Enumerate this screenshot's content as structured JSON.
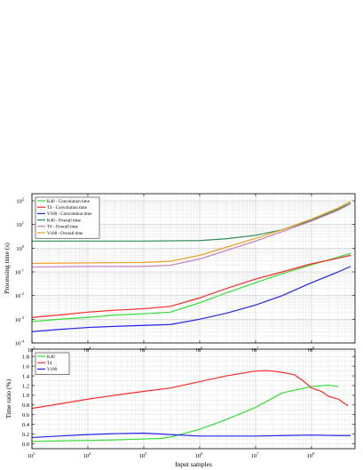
{
  "chart_data": [
    {
      "type": "line",
      "xlabel": "",
      "ylabel": "Processing time (s)",
      "xscale": "log",
      "yscale": "log",
      "xlim": [
        1000,
        600000000
      ],
      "ylim": [
        0.0001,
        200
      ],
      "x_tick_labels": [
        "10",
        "10",
        "10",
        "10",
        "10",
        "10"
      ],
      "x_tick_exponents": [
        "3",
        "4",
        "5",
        "6",
        "7",
        "8"
      ],
      "y_tick_labels": [
        "10",
        "10",
        "10",
        "10",
        "10",
        "10",
        "10"
      ],
      "y_tick_exponents": [
        "-4",
        "-3",
        "-2",
        "-1",
        "0",
        "1",
        "2"
      ],
      "grid": true,
      "legend_position": "top-left",
      "series": [
        {
          "name": "K40 - Convolution time",
          "color": "#33dd33",
          "x": [
            1000,
            3000,
            10000,
            30000,
            100000,
            300000,
            1000000,
            3000000,
            10000000,
            30000000,
            100000000,
            300000000,
            500000000
          ],
          "y": [
            0.0008,
            0.001,
            0.0012,
            0.0015,
            0.0017,
            0.002,
            0.005,
            0.013,
            0.035,
            0.085,
            0.2,
            0.42,
            0.6
          ]
        },
        {
          "name": "T4 - Convolution time",
          "color": "#ff2a2a",
          "x": [
            1000,
            3000,
            10000,
            30000,
            100000,
            300000,
            1000000,
            3000000,
            10000000,
            30000000,
            100000000,
            300000000,
            500000000
          ],
          "y": [
            0.0012,
            0.0015,
            0.002,
            0.0024,
            0.0028,
            0.0035,
            0.008,
            0.02,
            0.05,
            0.1,
            0.22,
            0.38,
            0.5
          ]
        },
        {
          "name": "V100 - Convolution time",
          "color": "#2222ee",
          "x": [
            1000,
            3000,
            10000,
            30000,
            100000,
            300000,
            1000000,
            3000000,
            10000000,
            30000000,
            100000000,
            300000000,
            500000000
          ],
          "y": [
            0.0003,
            0.00037,
            0.00045,
            0.0005,
            0.00055,
            0.0006,
            0.001,
            0.0018,
            0.004,
            0.01,
            0.035,
            0.1,
            0.17
          ]
        },
        {
          "name": "K40 - Overall time",
          "color": "#2e8b57",
          "x": [
            1000,
            10000,
            100000,
            1000000,
            3000000,
            10000000,
            30000000,
            100000000,
            300000000,
            500000000
          ],
          "y": [
            2,
            2,
            2,
            2.1,
            2.5,
            3.5,
            6,
            15,
            45,
            80
          ]
        },
        {
          "name": "T4 - Overall time",
          "color": "#c080c0",
          "x": [
            1000,
            10000,
            100000,
            300000,
            1000000,
            3000000,
            10000000,
            30000000,
            100000000,
            300000000,
            500000000
          ],
          "y": [
            0.16,
            0.17,
            0.17,
            0.19,
            0.35,
            0.8,
            2,
            5,
            14,
            40,
            75
          ]
        },
        {
          "name": "V100 - Overall time",
          "color": "#f0a020",
          "x": [
            1000,
            10000,
            100000,
            300000,
            1000000,
            3000000,
            10000000,
            30000000,
            100000000,
            300000000,
            500000000
          ],
          "y": [
            0.23,
            0.24,
            0.25,
            0.28,
            0.5,
            1.1,
            2.6,
            6,
            17,
            50,
            95
          ]
        }
      ]
    },
    {
      "type": "line",
      "xlabel": "Input samples",
      "ylabel": "Time ratio (%)",
      "xscale": "log",
      "yscale": "linear",
      "xlim": [
        1000,
        600000000
      ],
      "ylim": [
        -0.1,
        1.95
      ],
      "x_tick_labels": [
        "10",
        "10",
        "10",
        "10",
        "10",
        "10"
      ],
      "x_tick_exponents": [
        "3",
        "4",
        "5",
        "6",
        "7",
        "8"
      ],
      "y_tick_labels": [
        "0.0",
        "0.2",
        "0.4",
        "0.6",
        "0.8",
        "1.0",
        "1.2",
        "1.4",
        "1.6",
        "1.8"
      ],
      "grid": true,
      "legend_position": "top-left",
      "series": [
        {
          "name": "K40",
          "color": "#33dd33",
          "x": [
            1000,
            3000,
            10000,
            30000,
            100000,
            200000,
            300000,
            1000000,
            3000000,
            10000000,
            30000000,
            100000000,
            200000000,
            300000000
          ],
          "y": [
            0.05,
            0.06,
            0.07,
            0.08,
            0.1,
            0.11,
            0.14,
            0.3,
            0.5,
            0.75,
            1.05,
            1.18,
            1.21,
            1.18
          ]
        },
        {
          "name": "T4",
          "color": "#ff2a2a",
          "x": [
            1000,
            3000,
            10000,
            30000,
            100000,
            300000,
            1000000,
            3000000,
            10000000,
            15000000,
            20000000,
            30000000,
            50000000,
            70000000,
            100000000,
            150000000,
            200000000,
            300000000,
            450000000
          ],
          "y": [
            0.73,
            0.82,
            0.92,
            1.0,
            1.08,
            1.15,
            1.28,
            1.4,
            1.5,
            1.51,
            1.5,
            1.47,
            1.42,
            1.3,
            1.15,
            1.08,
            0.98,
            0.92,
            0.78
          ]
        },
        {
          "name": "V100",
          "color": "#2222ee",
          "x": [
            1000,
            3000,
            10000,
            30000,
            100000,
            300000,
            1000000,
            3000000,
            10000000,
            30000000,
            100000000,
            300000000,
            500000000
          ],
          "y": [
            0.13,
            0.16,
            0.19,
            0.21,
            0.22,
            0.19,
            0.16,
            0.16,
            0.16,
            0.17,
            0.18,
            0.17,
            0.17
          ]
        }
      ]
    }
  ]
}
